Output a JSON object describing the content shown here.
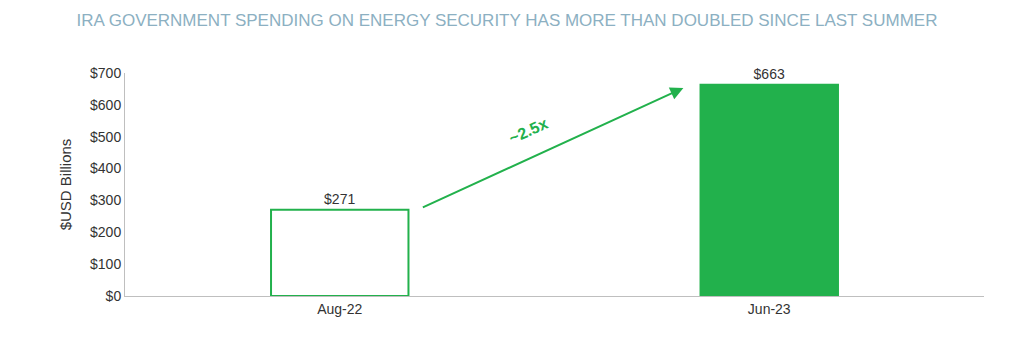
{
  "chart_data": {
    "type": "bar",
    "title": "IRA GOVERNMENT SPENDING ON ENERGY SECURITY HAS MORE THAN DOUBLED SINCE LAST SUMMER",
    "y_label": "$USD Billions",
    "categories": [
      "Aug-22",
      "Jun-23"
    ],
    "values": [
      271,
      663
    ],
    "value_labels": [
      "$271",
      "$663"
    ],
    "data_labels": true,
    "color": "#22b14c",
    "colors": [
      "#ffffff",
      "#22b14c"
    ],
    "ylim": [
      0,
      700
    ],
    "yticks": [
      {
        "value": 0,
        "label": "$0"
      },
      {
        "value": 100,
        "label": "$100"
      },
      {
        "value": 200,
        "label": "$200"
      },
      {
        "value": 300,
        "label": "$300"
      },
      {
        "value": 400,
        "label": "$400"
      },
      {
        "value": 500,
        "label": "$500"
      },
      {
        "value": 600,
        "label": "$600"
      },
      {
        "value": 700,
        "label": "$700"
      }
    ],
    "grid": false,
    "annotations": [
      "~2.5x"
    ]
  }
}
